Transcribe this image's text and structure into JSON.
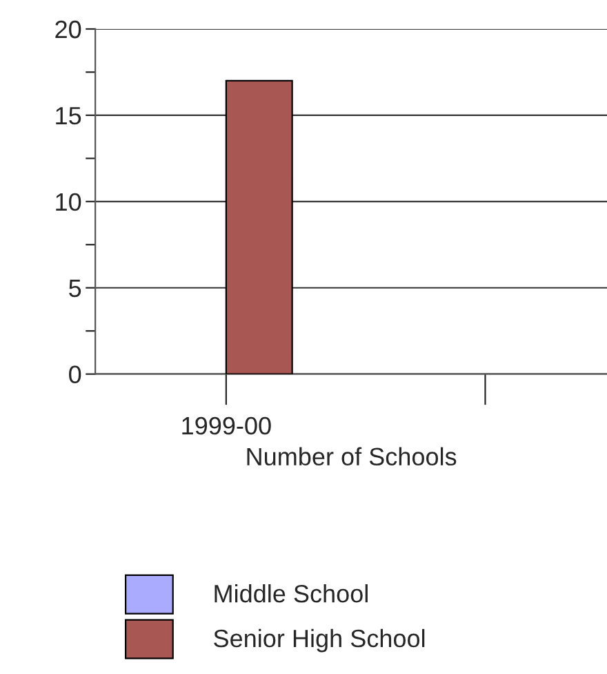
{
  "chart_data": {
    "type": "bar",
    "xlabel": "Number of Schools",
    "categories": [
      "1999-00",
      null
    ],
    "series": [
      {
        "name": "Middle School",
        "color": "#aaaaff",
        "values": [
          0,
          null
        ]
      },
      {
        "name": "Senior High School",
        "color": "#a85753",
        "values": [
          17,
          null
        ]
      }
    ],
    "ylim": [
      0,
      20
    ],
    "yticks": [
      0,
      {
        "value": 2.5,
        "label": null
      },
      5,
      {
        "value": 7.5,
        "label": null
      },
      10,
      {
        "value": 12.5,
        "label": null
      },
      15,
      {
        "value": 17.5,
        "label": null
      },
      20
    ],
    "grid": "y",
    "legend": "bottom"
  }
}
